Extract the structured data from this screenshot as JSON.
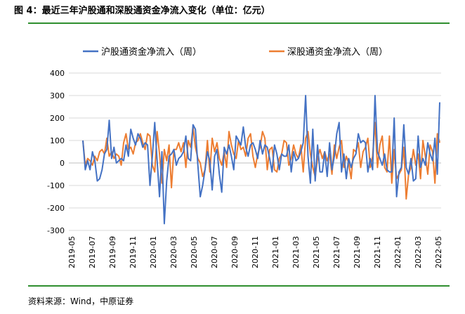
{
  "title": "图 4：最近三年沪股通和深股通资金净流入变化（单位：亿元）",
  "source": "资料来源：Wind，中原证券",
  "colors": {
    "sh": "#4472C4",
    "sz": "#ED7D31",
    "rule": "#2F8F2F",
    "grid": "#D9D9D9"
  },
  "chart_data": {
    "type": "line",
    "title": "",
    "xlabel": "",
    "ylabel": "",
    "ylim": [
      -300,
      400
    ],
    "yticks": [
      "400",
      "300",
      "200",
      "100",
      "0",
      "-100",
      "-200",
      "-300"
    ],
    "x_tick_labels": [
      "2019-05",
      "2019-07",
      "2019-09",
      "2019-11",
      "2020-01",
      "2020-03",
      "2020-05",
      "2020-07",
      "2020-09",
      "2020-11",
      "2021-01",
      "2021-03",
      "2021-05",
      "2021-07",
      "2021-09",
      "2021-11",
      "2022-01",
      "2022-03",
      "2022-05"
    ],
    "legend_position": "top",
    "grid": true,
    "series": [
      {
        "name": "沪股通资金净流入（周）",
        "values": [
          100,
          -30,
          10,
          -30,
          50,
          10,
          -80,
          -70,
          -30,
          40,
          60,
          190,
          20,
          70,
          0,
          10,
          20,
          10,
          80,
          30,
          150,
          110,
          80,
          130,
          110,
          70,
          90,
          80,
          -100,
          30,
          180,
          10,
          -150,
          50,
          -270,
          -80,
          30,
          40,
          60,
          -10,
          20,
          30,
          50,
          120,
          20,
          10,
          170,
          150,
          -10,
          -150,
          -100,
          -30,
          50,
          10,
          -120,
          30,
          60,
          -50,
          -130,
          70,
          40,
          80,
          30,
          -30,
          120,
          100,
          80,
          160,
          70,
          30,
          80,
          90,
          60,
          20,
          100,
          40,
          80,
          70,
          20,
          -40,
          80,
          40,
          -30,
          40,
          30,
          30,
          80,
          -40,
          50,
          10,
          20,
          50,
          90,
          300,
          30,
          -90,
          150,
          -80,
          80,
          -40,
          -40,
          50,
          -60,
          90,
          -30,
          30,
          130,
          180,
          -40,
          40,
          -70,
          20,
          -20,
          20,
          40,
          130,
          90,
          100,
          90,
          -40,
          20,
          -30,
          300,
          50,
          20,
          -10,
          40,
          -30,
          -40,
          -40,
          200,
          -150,
          -40,
          -20,
          170,
          -20,
          -50,
          20,
          -80,
          -70,
          120,
          -20,
          20,
          -10,
          90,
          40,
          10,
          110,
          -50,
          270
        ]
      },
      {
        "name": "深股通资金净流入（周）",
        "values": [
          100,
          -10,
          20,
          10,
          -10,
          30,
          10,
          50,
          60,
          40,
          110,
          30,
          50,
          20,
          40,
          30,
          -10,
          90,
          130,
          60,
          70,
          40,
          90,
          100,
          130,
          90,
          60,
          130,
          120,
          -10,
          -40,
          140,
          40,
          -90,
          60,
          10,
          80,
          -110,
          60,
          60,
          90,
          50,
          90,
          -20,
          100,
          70,
          160,
          70,
          20,
          0,
          -60,
          -30,
          100,
          -40,
          110,
          50,
          90,
          20,
          -10,
          50,
          -20,
          140,
          80,
          40,
          20,
          100,
          60,
          70,
          30,
          110,
          130,
          30,
          -20,
          40,
          70,
          140,
          110,
          -30,
          60,
          70,
          -30,
          -40,
          20,
          40,
          100,
          90,
          -10,
          20,
          80,
          40,
          20,
          80,
          -40,
          110,
          140,
          40,
          -20,
          -60,
          20,
          60,
          20,
          50,
          10,
          40,
          -50,
          80,
          20,
          70,
          100,
          -20,
          30,
          0,
          -70,
          60,
          50,
          90,
          -20,
          50,
          70,
          110,
          -20,
          30,
          180,
          -20,
          80,
          120,
          -20,
          -40,
          120,
          -90,
          60,
          -70,
          -50,
          -30,
          70,
          -160,
          -50,
          -20,
          60,
          -10,
          40,
          -70,
          100,
          30,
          -50,
          80,
          50,
          -90,
          130,
          90
        ]
      }
    ]
  }
}
